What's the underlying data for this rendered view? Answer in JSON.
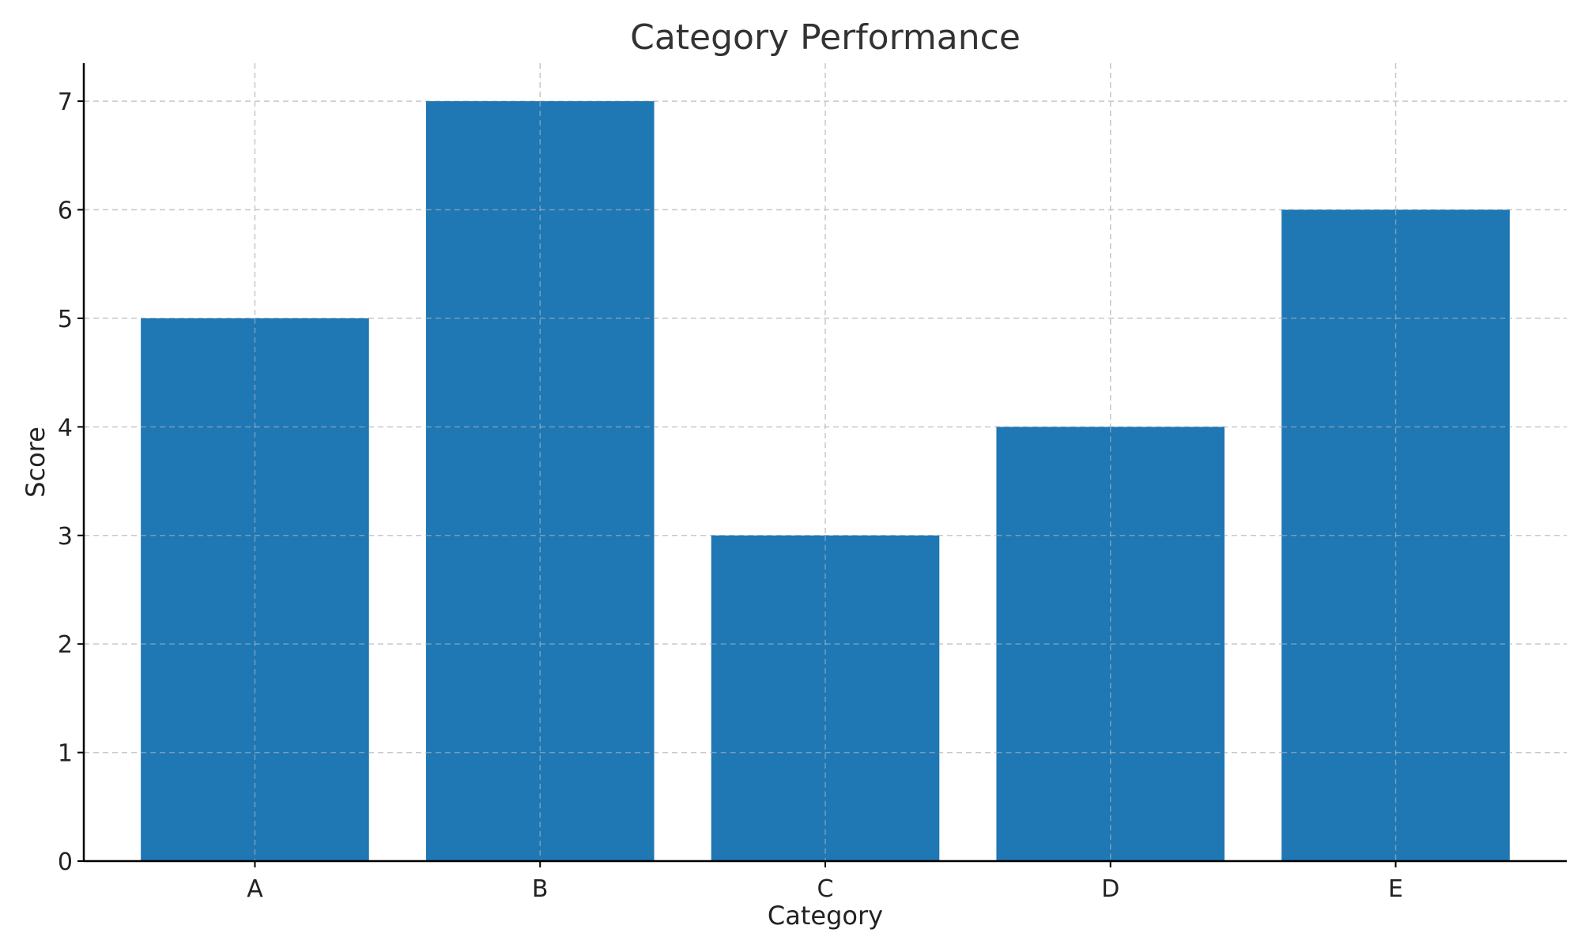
{
  "chart_data": {
    "type": "bar",
    "title": "Category Performance",
    "xlabel": "Category",
    "ylabel": "Score",
    "categories": [
      "A",
      "B",
      "C",
      "D",
      "E"
    ],
    "values": [
      5,
      7,
      3,
      4,
      6
    ],
    "yticks": [
      "0",
      "1",
      "2",
      "3",
      "4",
      "5",
      "6",
      "7"
    ],
    "ylim": [
      0,
      7.35
    ],
    "grid": true,
    "bar_color": "#1f77b4"
  }
}
